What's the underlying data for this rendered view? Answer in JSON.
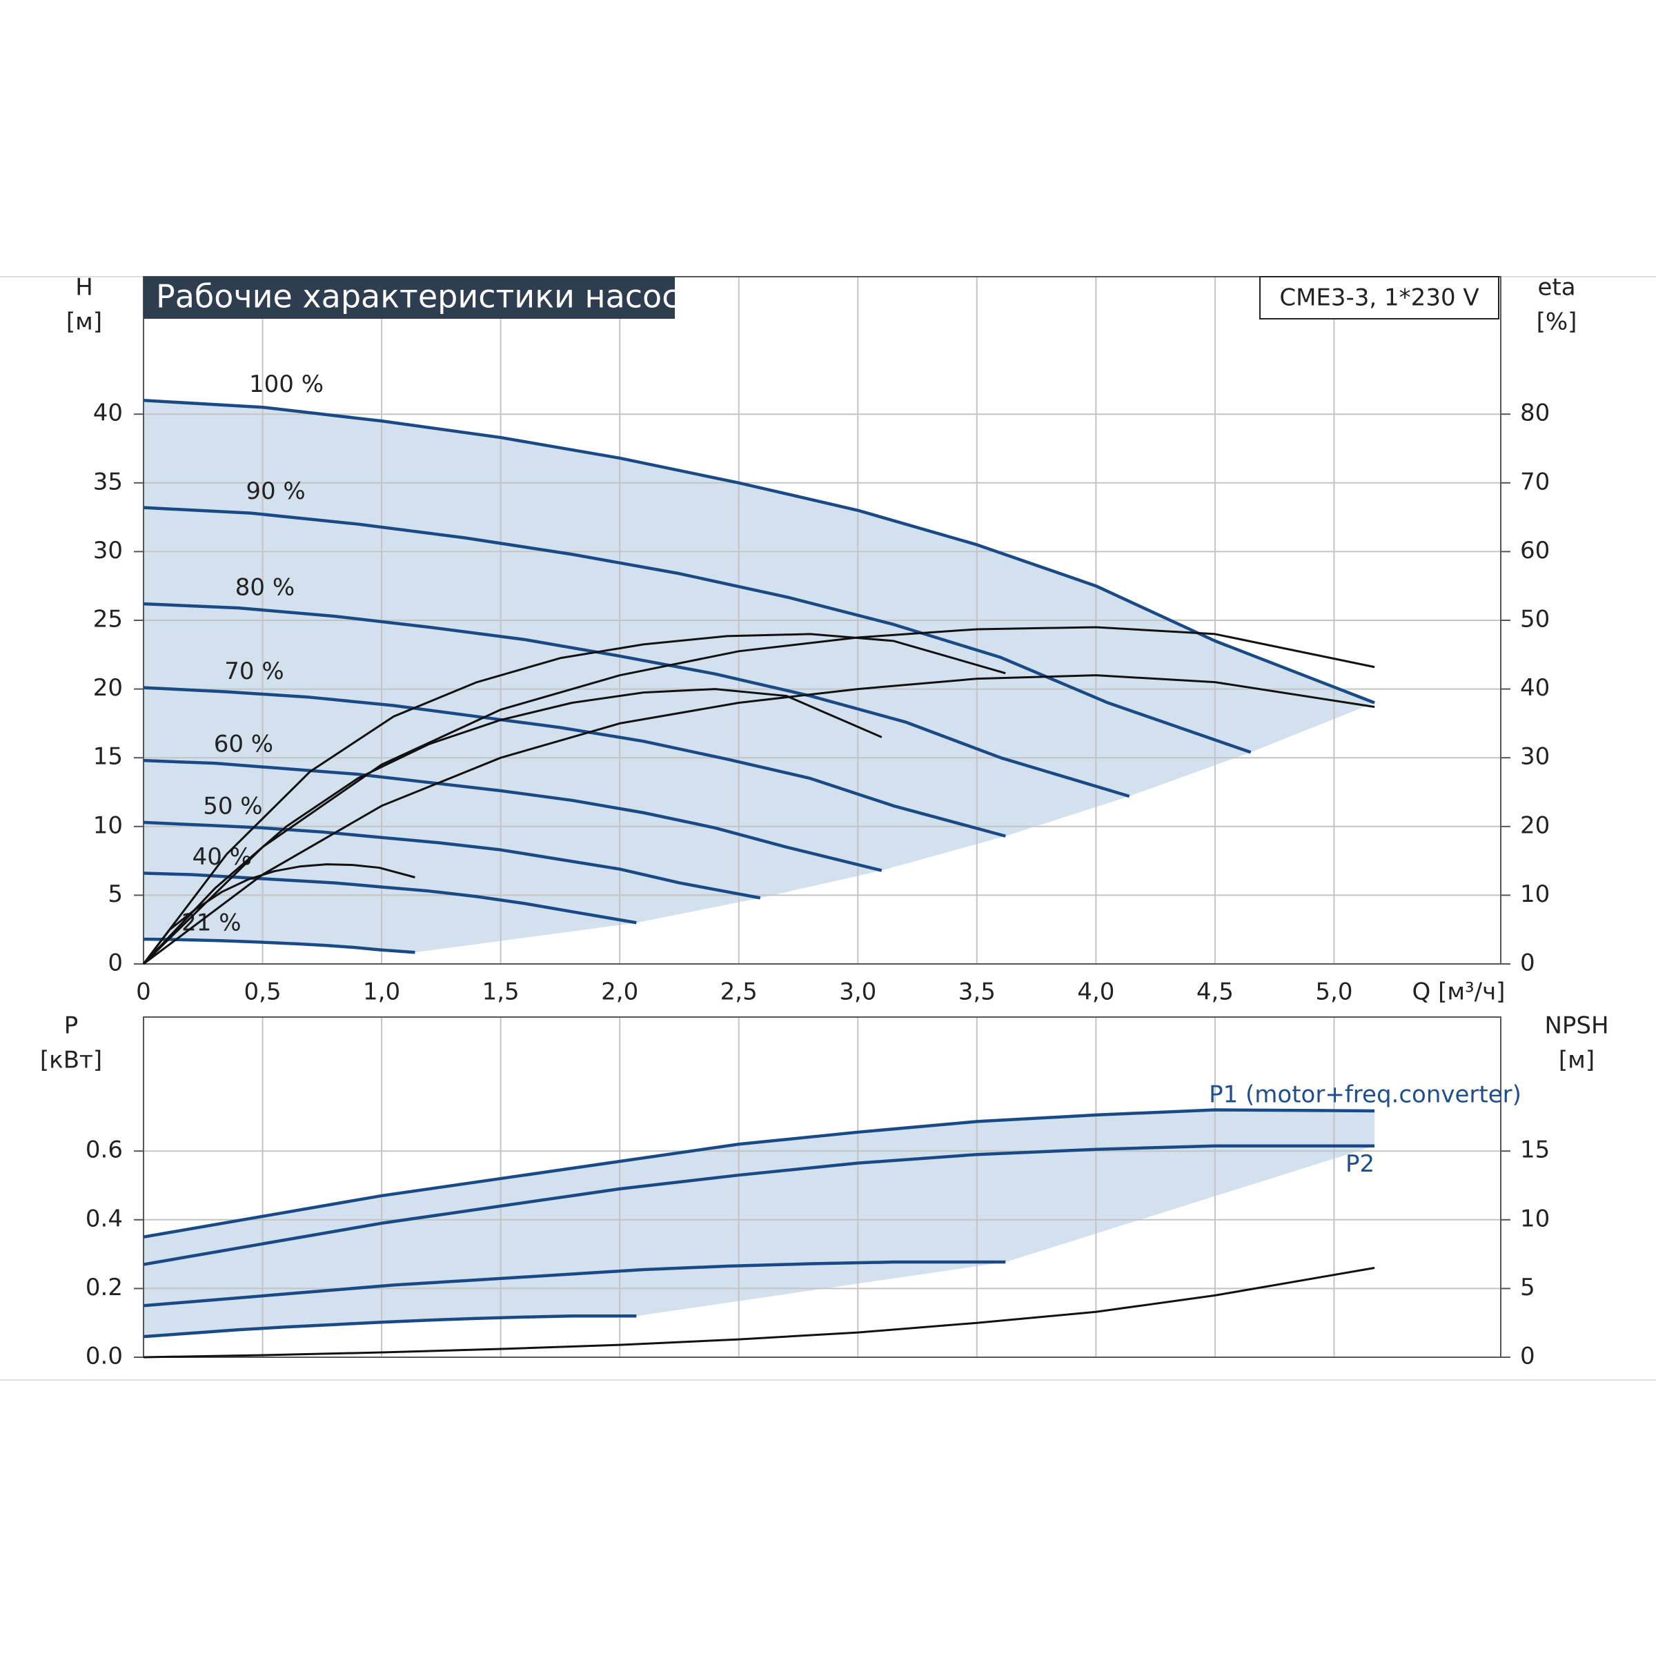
{
  "charts": [
    {
      "type": "line",
      "title": "Рабочие характеристики насоса",
      "model": "CME3-3, 1*230 V",
      "ylabel": [
        "H",
        "[м]"
      ],
      "y2label": [
        "eta",
        "[%]"
      ],
      "xlabel": "Q [м³/ч]",
      "xlim": [
        0,
        5.7
      ],
      "xticks": [
        0,
        {
          "value": 0.5,
          "label": "0,5"
        },
        {
          "value": 1,
          "label": "1,0"
        },
        {
          "value": 1.5,
          "label": "1,5"
        },
        {
          "value": 2,
          "label": "2,0"
        },
        {
          "value": 2.5,
          "label": "2,5"
        },
        {
          "value": 3,
          "label": "3,0"
        },
        {
          "value": 3.5,
          "label": "3,5"
        },
        {
          "value": 4,
          "label": "4,0"
        },
        {
          "value": 4.5,
          "label": "4,5"
        },
        {
          "value": 5,
          "label": "5,0"
        }
      ],
      "ylim": [
        0,
        50
      ],
      "yticks": [
        0,
        5,
        10,
        15,
        20,
        25,
        30,
        35,
        40
      ],
      "y2lim": [
        0,
        100
      ],
      "y2ticks": [
        0,
        10,
        20,
        30,
        40,
        50,
        60,
        70,
        80
      ],
      "grid": true,
      "series": [
        {
          "name": "100 %",
          "color": "#1a4a85",
          "x": [
            0,
            0.5,
            1,
            1.5,
            2,
            2.5,
            3,
            3.5,
            4,
            4.5,
            5.17
          ],
          "values": [
            41,
            40.5,
            39.5,
            38.3,
            36.8,
            35,
            33,
            30.5,
            27.5,
            23.5,
            19
          ]
        },
        {
          "name": "90 %",
          "color": "#1a4a85",
          "x": [
            0,
            0.45,
            0.9,
            1.35,
            1.8,
            2.25,
            2.7,
            3.15,
            3.6,
            4.05,
            4.65
          ],
          "values": [
            33.2,
            32.8,
            32,
            31,
            29.8,
            28.4,
            26.7,
            24.7,
            22.3,
            19,
            15.4
          ]
        },
        {
          "name": "80 %",
          "color": "#1a4a85",
          "x": [
            0,
            0.4,
            0.8,
            1.2,
            1.6,
            2,
            2.4,
            2.8,
            3.2,
            3.6,
            4.14
          ],
          "values": [
            26.2,
            25.9,
            25.3,
            24.5,
            23.6,
            22.4,
            21.1,
            19.5,
            17.6,
            15,
            12.2
          ]
        },
        {
          "name": "70 %",
          "color": "#1a4a85",
          "x": [
            0,
            0.35,
            0.7,
            1.05,
            1.4,
            1.75,
            2.1,
            2.45,
            2.8,
            3.15,
            3.62
          ],
          "values": [
            20.1,
            19.8,
            19.4,
            18.8,
            18,
            17.2,
            16.2,
            14.9,
            13.5,
            11.5,
            9.3
          ]
        },
        {
          "name": "60 %",
          "color": "#1a4a85",
          "x": [
            0,
            0.3,
            0.6,
            0.9,
            1.2,
            1.5,
            1.8,
            2.1,
            2.4,
            2.7,
            3.1
          ],
          "values": [
            14.8,
            14.6,
            14.2,
            13.8,
            13.2,
            12.6,
            11.9,
            11,
            9.9,
            8.5,
            6.8
          ]
        },
        {
          "name": "50 %",
          "color": "#1a4a85",
          "x": [
            0,
            0.25,
            0.5,
            0.75,
            1,
            1.25,
            1.5,
            1.75,
            2,
            2.25,
            2.59
          ],
          "values": [
            10.3,
            10.1,
            9.9,
            9.6,
            9.2,
            8.8,
            8.3,
            7.6,
            6.9,
            5.9,
            4.8
          ]
        },
        {
          "name": "40 %",
          "color": "#1a4a85",
          "x": [
            0,
            0.2,
            0.4,
            0.6,
            0.8,
            1,
            1.2,
            1.4,
            1.6,
            1.8,
            2.07
          ],
          "values": [
            6.6,
            6.5,
            6.3,
            6.1,
            5.9,
            5.6,
            5.3,
            4.9,
            4.4,
            3.8,
            3
          ]
        },
        {
          "name": "21 %",
          "color": "#1a4a85",
          "x": [
            0,
            0.11,
            0.22,
            0.33,
            0.44,
            0.55,
            0.66,
            0.77,
            0.88,
            0.99,
            1.14
          ],
          "values": [
            1.8,
            1.78,
            1.74,
            1.69,
            1.62,
            1.54,
            1.45,
            1.34,
            1.21,
            1.03,
            0.84
          ]
        },
        {
          "axis": "y2",
          "color": "#111111",
          "x": [
            0,
            0.5,
            1,
            1.5,
            2,
            2.5,
            3,
            3.5,
            4,
            4.5,
            5.17
          ],
          "values": [
            0,
            17,
            29,
            37,
            42,
            45.5,
            47.5,
            48.7,
            49,
            48,
            43.2
          ]
        },
        {
          "axis": "y2",
          "color": "#111111",
          "x": [
            0,
            0.35,
            0.7,
            1.05,
            1.4,
            1.75,
            2.1,
            2.45,
            2.8,
            3.15,
            3.62
          ],
          "values": [
            0,
            16,
            28,
            36,
            41,
            44.5,
            46.5,
            47.7,
            48,
            47,
            42.3
          ]
        },
        {
          "axis": "y2",
          "color": "#111111",
          "x": [
            0,
            0.5,
            1,
            1.5,
            2,
            2.5,
            3,
            3.5,
            4,
            4.5,
            5.17
          ],
          "values": [
            0,
            13,
            23,
            30,
            35,
            38,
            40,
            41.5,
            42,
            41,
            37.4
          ]
        },
        {
          "axis": "y2",
          "color": "#111111",
          "x": [
            0,
            0.3,
            0.6,
            0.9,
            1.2,
            1.5,
            1.8,
            2.1,
            2.4,
            2.7,
            3.1
          ],
          "values": [
            0,
            11,
            20,
            27,
            32,
            35.5,
            38,
            39.5,
            40,
            39,
            33
          ]
        },
        {
          "axis": "y2",
          "color": "#111111",
          "x": [
            0,
            0.11,
            0.22,
            0.33,
            0.44,
            0.55,
            0.66,
            0.77,
            0.88,
            0.99,
            1.14
          ],
          "values": [
            0,
            5,
            8,
            10.5,
            12.3,
            13.5,
            14.2,
            14.5,
            14.4,
            14,
            12.6
          ]
        }
      ]
    },
    {
      "type": "line",
      "ylabel": [
        "P",
        "[кВт]"
      ],
      "y2label": [
        "NPSH",
        "[м]"
      ],
      "xlim": [
        0,
        5.7
      ],
      "ylim": [
        0,
        0.99
      ],
      "yticks": [
        {
          "value": 0,
          "label": "0.0"
        },
        0.2,
        0.4,
        0.6
      ],
      "y2lim": [
        0,
        24.75
      ],
      "y2ticks": [
        0,
        5,
        10,
        15
      ],
      "grid": true,
      "series": [
        {
          "name": "P1 (motor+freq.converter)",
          "color": "#1a4a85",
          "x": [
            0,
            0.5,
            1,
            1.5,
            2,
            2.5,
            3,
            3.5,
            4,
            4.5,
            5.17
          ],
          "values": [
            0.35,
            0.41,
            0.47,
            0.52,
            0.57,
            0.62,
            0.655,
            0.686,
            0.705,
            0.72,
            0.717
          ]
        },
        {
          "name": "P2",
          "color": "#1a4a85",
          "x": [
            0,
            0.5,
            1,
            1.5,
            2,
            2.5,
            3,
            3.5,
            4,
            4.5,
            5.17
          ],
          "values": [
            0.27,
            0.33,
            0.39,
            0.44,
            0.49,
            0.53,
            0.565,
            0.59,
            0.605,
            0.615,
            0.615
          ]
        },
        {
          "color": "#1a4a85",
          "x": [
            0,
            0.35,
            0.7,
            1.05,
            1.4,
            1.75,
            2.1,
            2.45,
            2.8,
            3.15,
            3.62
          ],
          "values": [
            0.15,
            0.17,
            0.19,
            0.21,
            0.225,
            0.24,
            0.255,
            0.265,
            0.272,
            0.277,
            0.277
          ]
        },
        {
          "color": "#1a4a85",
          "x": [
            0,
            0.2,
            0.4,
            0.6,
            0.8,
            1,
            1.2,
            1.4,
            1.6,
            1.8,
            2.07
          ],
          "values": [
            0.06,
            0.07,
            0.08,
            0.088,
            0.095,
            0.102,
            0.108,
            0.113,
            0.117,
            0.12,
            0.12
          ]
        },
        {
          "axis": "y2",
          "color": "#111111",
          "x": [
            0,
            0.5,
            1,
            1.5,
            2,
            2.5,
            3,
            3.5,
            4,
            4.5,
            5.17
          ],
          "values": [
            0,
            0.15,
            0.35,
            0.6,
            0.9,
            1.3,
            1.8,
            2.5,
            3.3,
            4.5,
            6.5
          ]
        }
      ]
    }
  ]
}
